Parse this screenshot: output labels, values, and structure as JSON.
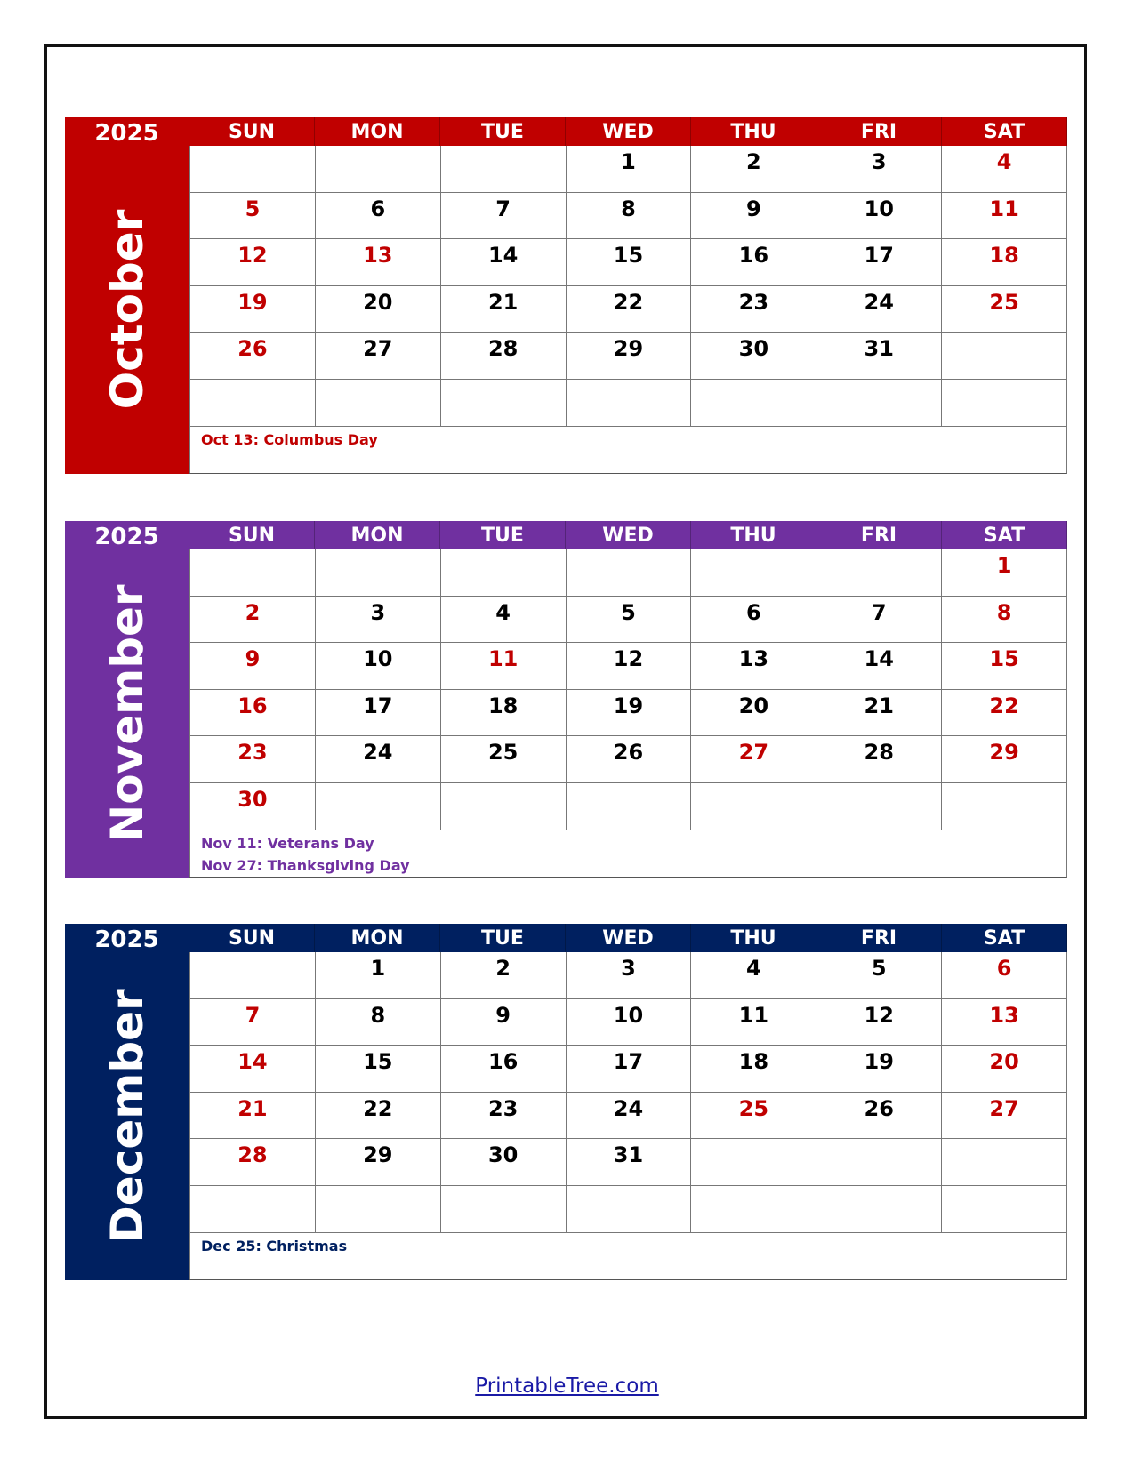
{
  "weekdays": [
    "SUN",
    "MON",
    "TUE",
    "WED",
    "THU",
    "FRI",
    "SAT"
  ],
  "months": [
    {
      "name": "October",
      "year": "2025",
      "color": "#c00000",
      "weeks": [
        [
          "",
          "",
          "",
          "1",
          "2",
          "3",
          "4"
        ],
        [
          "5",
          "6",
          "7",
          "8",
          "9",
          "10",
          "11"
        ],
        [
          "12",
          "13",
          "14",
          "15",
          "16",
          "17",
          "18"
        ],
        [
          "19",
          "20",
          "21",
          "22",
          "23",
          "24",
          "25"
        ],
        [
          "26",
          "27",
          "28",
          "29",
          "30",
          "31",
          ""
        ],
        [
          "",
          "",
          "",
          "",
          "",
          "",
          ""
        ]
      ],
      "red_days": [
        "13"
      ],
      "notes": [
        "Oct 13: Columbus Day"
      ]
    },
    {
      "name": "November",
      "year": "2025",
      "color": "#7030a0",
      "weeks": [
        [
          "",
          "",
          "",
          "",
          "",
          "",
          "1"
        ],
        [
          "2",
          "3",
          "4",
          "5",
          "6",
          "7",
          "8"
        ],
        [
          "9",
          "10",
          "11",
          "12",
          "13",
          "14",
          "15"
        ],
        [
          "16",
          "17",
          "18",
          "19",
          "20",
          "21",
          "22"
        ],
        [
          "23",
          "24",
          "25",
          "26",
          "27",
          "28",
          "29"
        ],
        [
          "30",
          "",
          "",
          "",
          "",
          "",
          ""
        ]
      ],
      "red_days": [
        "11",
        "27"
      ],
      "notes": [
        "Nov 11: Veterans Day",
        "Nov 27: Thanksgiving Day"
      ]
    },
    {
      "name": "December",
      "year": "2025",
      "color": "#002060",
      "weeks": [
        [
          "",
          "1",
          "2",
          "3",
          "4",
          "5",
          "6"
        ],
        [
          "7",
          "8",
          "9",
          "10",
          "11",
          "12",
          "13"
        ],
        [
          "14",
          "15",
          "16",
          "17",
          "18",
          "19",
          "20"
        ],
        [
          "21",
          "22",
          "23",
          "24",
          "25",
          "26",
          "27"
        ],
        [
          "28",
          "29",
          "30",
          "31",
          "",
          "",
          ""
        ],
        [
          "",
          "",
          "",
          "",
          "",
          "",
          ""
        ]
      ],
      "red_days": [
        "25"
      ],
      "notes": [
        "Dec 25: Christmas"
      ]
    }
  ],
  "footer": {
    "link": "PrintableTree.com"
  }
}
